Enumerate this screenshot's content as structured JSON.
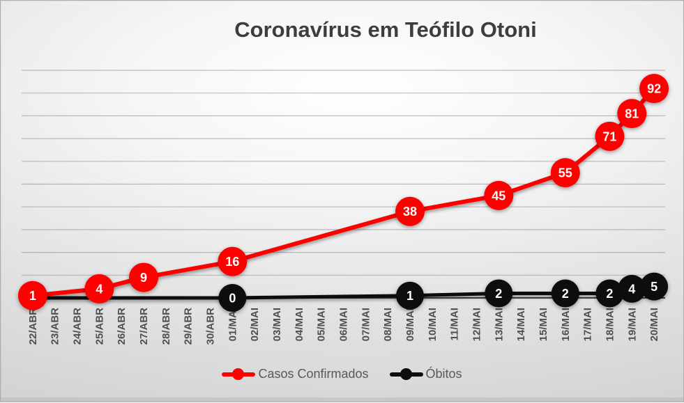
{
  "chart_data": {
    "type": "line",
    "title": "Coronavírus em Teófilo Otoni",
    "categories": [
      "22/ABR",
      "23/ABR",
      "24/ABR",
      "25/ABR",
      "26/ABR",
      "27/ABR",
      "28/ABR",
      "29/ABR",
      "30/ABR",
      "01/MAI",
      "02/MAI",
      "03/MAI",
      "04/MAI",
      "05/MAI",
      "06/MAI",
      "07/MAI",
      "08/MAI",
      "09/MAI",
      "10/MAI",
      "11/MAI",
      "12/MAI",
      "13/MAI",
      "14/MAI",
      "15/MAI",
      "16/MAI",
      "17/MAI",
      "18/MAI",
      "19/MAI",
      "20/MAI"
    ],
    "series": [
      {
        "name": "Casos Confirmados",
        "color": "#ff0000",
        "points": [
          {
            "date": "22/ABR",
            "value": 1
          },
          {
            "date": "25/ABR",
            "value": 4
          },
          {
            "date": "27/ABR",
            "value": 9
          },
          {
            "date": "01/MAI",
            "value": 16
          },
          {
            "date": "09/MAI",
            "value": 38
          },
          {
            "date": "13/MAI",
            "value": 45
          },
          {
            "date": "16/MAI",
            "value": 55
          },
          {
            "date": "18/MAI",
            "value": 71
          },
          {
            "date": "19/MAI",
            "value": 81
          },
          {
            "date": "20/MAI",
            "value": 92
          }
        ]
      },
      {
        "name": "Óbitos",
        "color": "#0d0d0d",
        "points": [
          {
            "date": "22/ABR",
            "value": 0,
            "show_marker": false
          },
          {
            "date": "01/MAI",
            "value": 0
          },
          {
            "date": "09/MAI",
            "value": 1
          },
          {
            "date": "13/MAI",
            "value": 2
          },
          {
            "date": "16/MAI",
            "value": 2
          },
          {
            "date": "18/MAI",
            "value": 2
          },
          {
            "date": "19/MAI",
            "value": 4
          },
          {
            "date": "20/MAI",
            "value": 5
          }
        ]
      }
    ],
    "xlabel": "",
    "ylabel": "",
    "ylim": [
      0,
      100
    ],
    "gridline_step": 10,
    "grid": "horizontal",
    "y_axis_labels_visible": false,
    "x_label_rotation_deg": -90,
    "data_labels": "on-marker",
    "legend_position": "bottom",
    "colors": {
      "gridline": "#9b9b9b",
      "axis_line": "#404040",
      "title_text": "#3d3d3d",
      "axis_label_text": "#4f4f4f",
      "legend_text": "#595959"
    }
  }
}
